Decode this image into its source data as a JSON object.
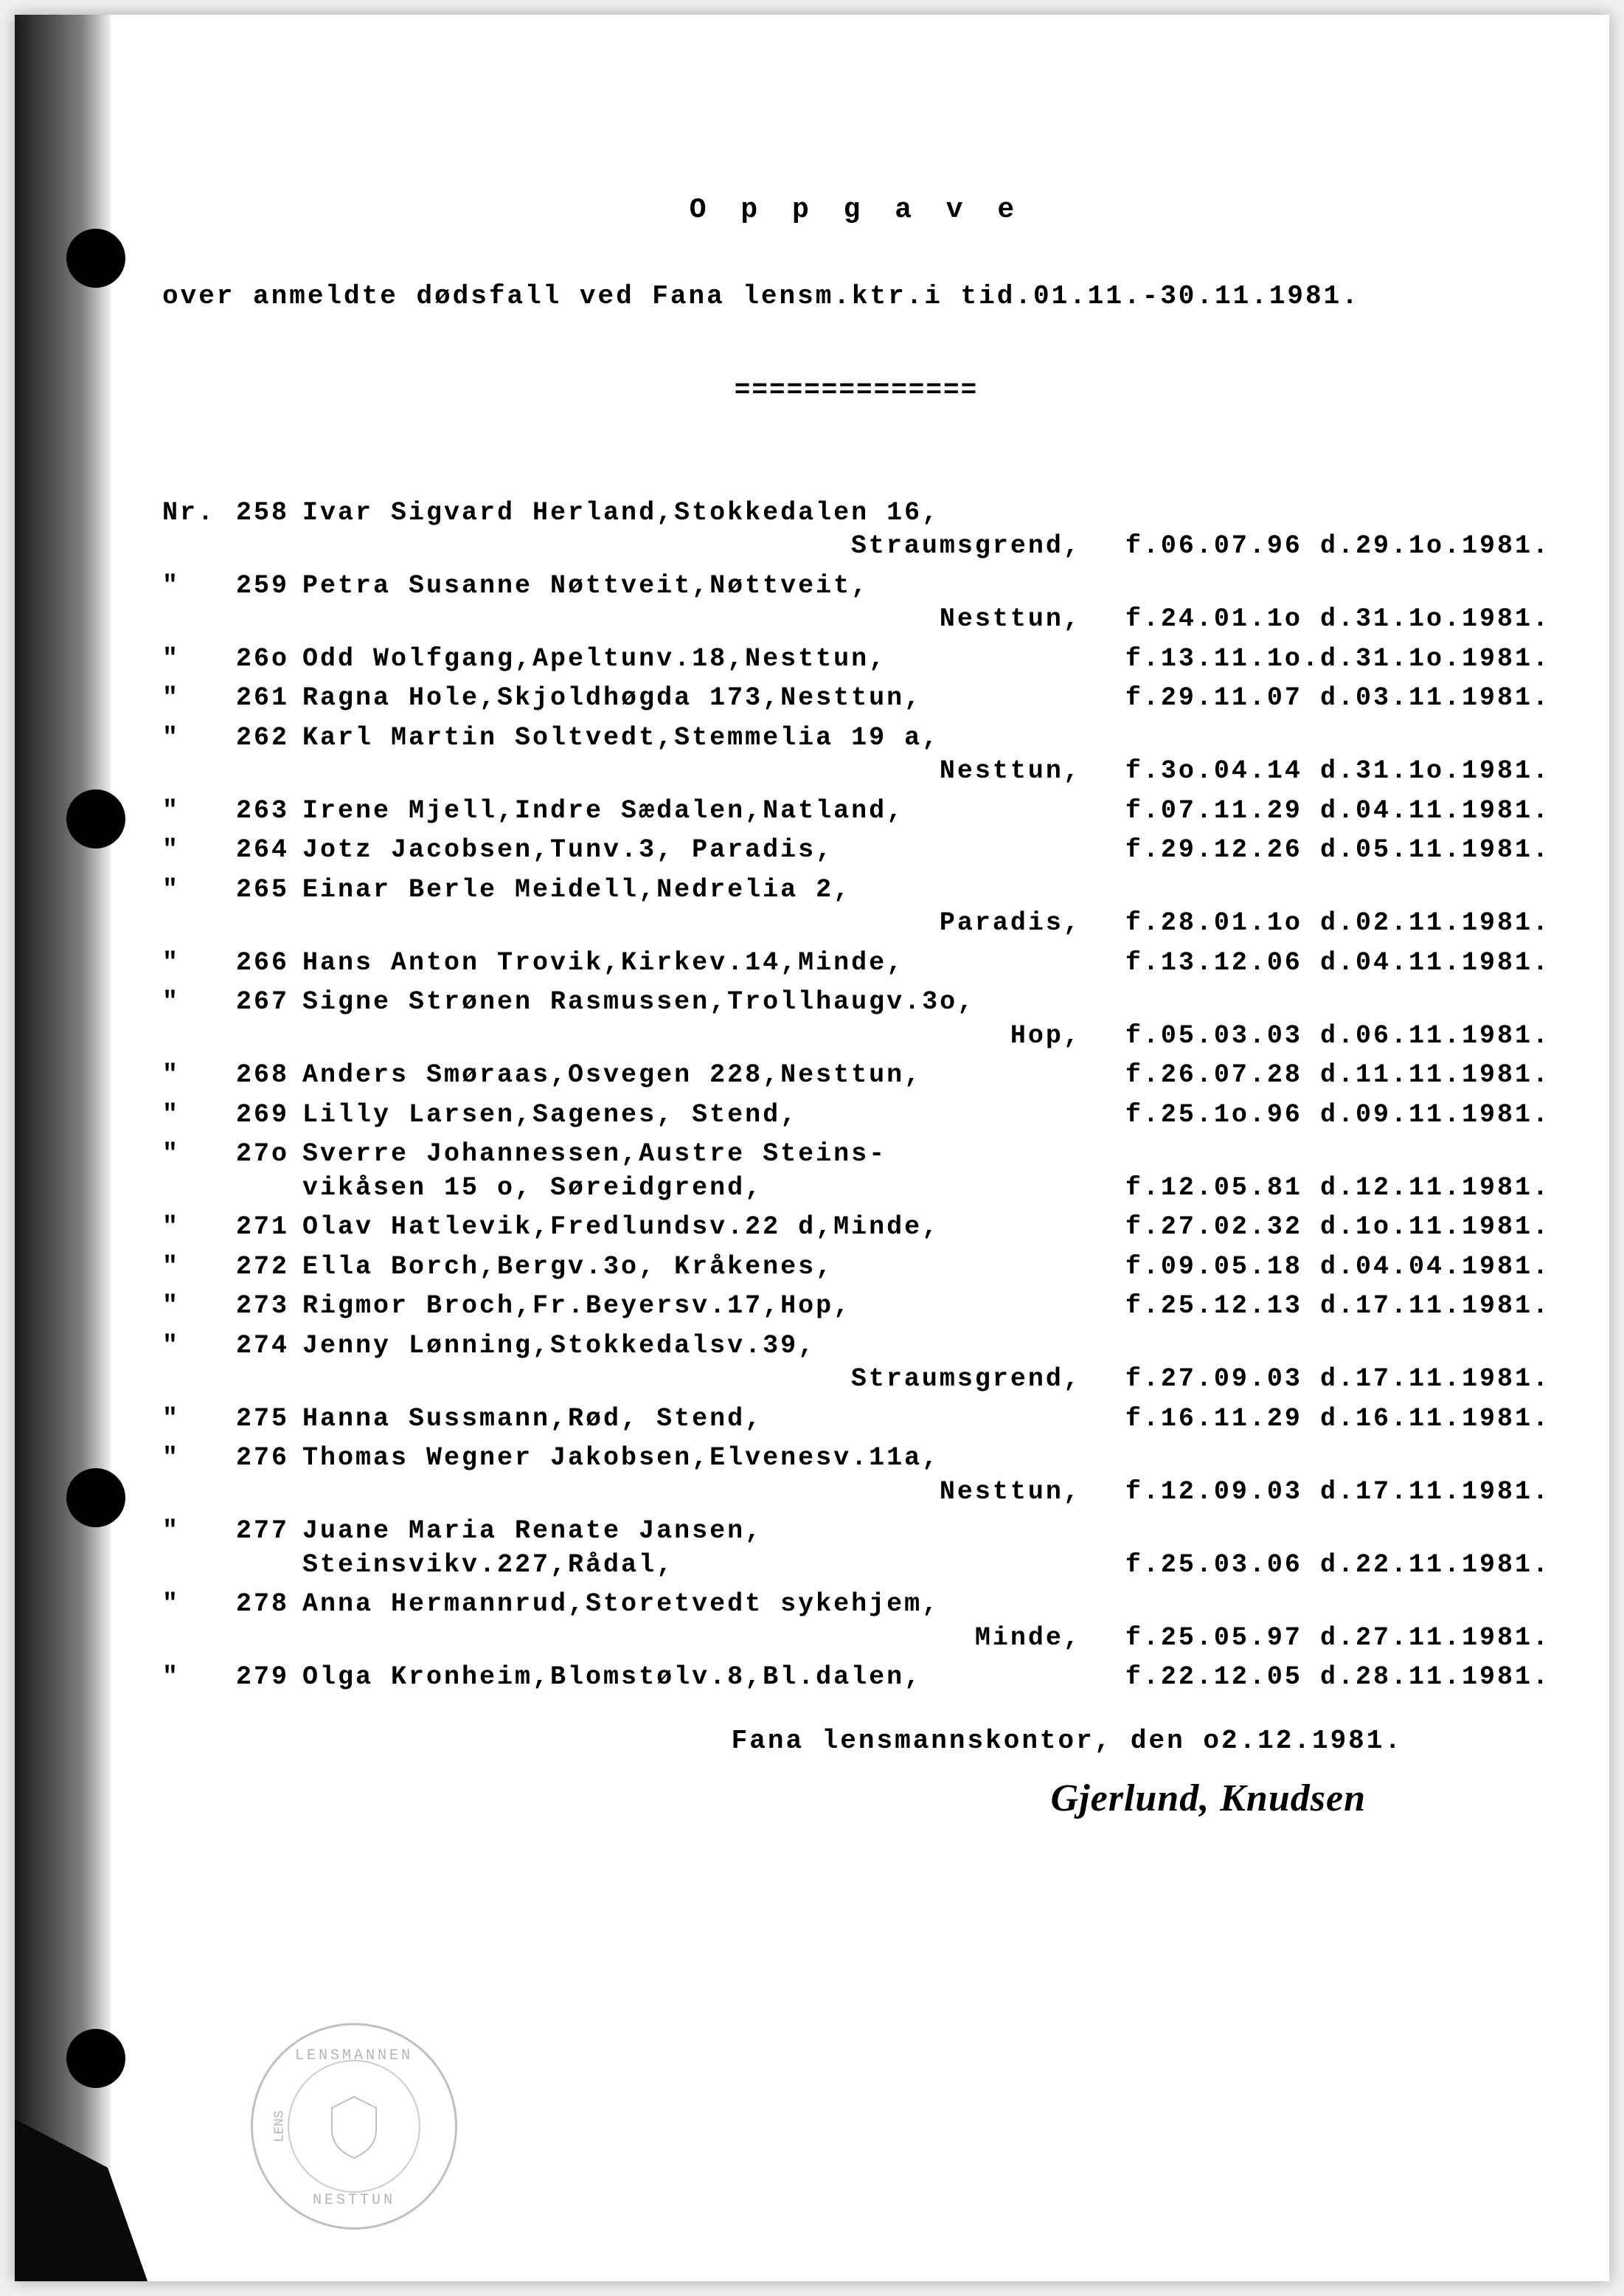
{
  "title": "O p p g a v e",
  "subtitle": "over anmeldte dødsfall ved Fana lensm.ktr.i tid.01.11.-30.11.1981.",
  "divider": "==============",
  "nr_label": "Nr.",
  "ditto": "\"",
  "entries": [
    {
      "num": "258",
      "line1": "Ivar Sigvard Herland,Stokkedalen 16,",
      "line2_place": "Straumsgrend,",
      "dates": "f.06.07.96 d.29.1o.1981."
    },
    {
      "num": "259",
      "line1": "Petra Susanne Nøttveit,Nøttveit,",
      "line2_place": "Nesttun,",
      "dates": "f.24.01.1o d.31.1o.1981."
    },
    {
      "num": "26o",
      "line1": "Odd Wolfgang,Apeltunv.18,Nesttun,",
      "dates": "f.13.11.1o.d.31.1o.1981."
    },
    {
      "num": "261",
      "line1": "Ragna Hole,Skjoldhøgda 173,Nesttun,",
      "dates": "f.29.11.07 d.03.11.1981."
    },
    {
      "num": "262",
      "line1": "Karl Martin Soltvedt,Stemmelia 19 a,",
      "line2_place": "Nesttun,",
      "dates": "f.3o.04.14 d.31.1o.1981."
    },
    {
      "num": "263",
      "line1": "Irene Mjell,Indre Sædalen,Natland,",
      "dates": "f.07.11.29 d.04.11.1981."
    },
    {
      "num": "264",
      "line1": "Jotz Jacobsen,Tunv.3, Paradis,",
      "dates": "f.29.12.26 d.05.11.1981."
    },
    {
      "num": "265",
      "line1": "Einar Berle Meidell,Nedrelia 2,",
      "line2_place": "Paradis,",
      "dates": "f.28.01.1o d.02.11.1981."
    },
    {
      "num": "266",
      "line1": "Hans Anton Trovik,Kirkev.14,Minde,",
      "dates": "f.13.12.06 d.04.11.1981."
    },
    {
      "num": "267",
      "line1": "Signe Strønen Rasmussen,Trollhaugv.3o,",
      "line2_place": "Hop,",
      "dates": "f.05.03.03 d.06.11.1981."
    },
    {
      "num": "268",
      "line1": "Anders Smøraas,Osvegen 228,Nesttun,",
      "dates": "f.26.07.28 d.11.11.1981."
    },
    {
      "num": "269",
      "line1": "Lilly Larsen,Sagenes, Stend,",
      "dates": "f.25.1o.96 d.09.11.1981."
    },
    {
      "num": "27o",
      "line1": "Sverre Johannessen,Austre Steins-",
      "line2_full": "vikåsen 15 o, Søreidgrend,",
      "dates": "f.12.05.81 d.12.11.1981."
    },
    {
      "num": "271",
      "line1": "Olav Hatlevik,Fredlundsv.22 d,Minde,",
      "dates": "f.27.02.32 d.1o.11.1981."
    },
    {
      "num": "272",
      "line1": "Ella Borch,Bergv.3o, Kråkenes,",
      "dates": "f.09.05.18 d.04.04.1981."
    },
    {
      "num": "273",
      "line1": "Rigmor Broch,Fr.Beyersv.17,Hop,",
      "dates": "f.25.12.13 d.17.11.1981."
    },
    {
      "num": "274",
      "line1": "Jenny Lønning,Stokkedalsv.39,",
      "line2_place": "Straumsgrend,",
      "dates": "f.27.09.03 d.17.11.1981."
    },
    {
      "num": "275",
      "line1": "Hanna Sussmann,Rød, Stend,",
      "dates": "f.16.11.29 d.16.11.1981."
    },
    {
      "num": "276",
      "line1": "Thomas Wegner Jakobsen,Elvenesv.11a,",
      "line2_place": "Nesttun,",
      "dates": "f.12.09.03 d.17.11.1981."
    },
    {
      "num": "277",
      "line1": "Juane Maria Renate Jansen,",
      "line2_full": "Steinsvikv.227,Rådal,",
      "dates": "f.25.03.06 d.22.11.1981."
    },
    {
      "num": "278",
      "line1": "Anna Hermannrud,Storetvedt sykehjem,",
      "line2_place": "Minde,",
      "dates": "f.25.05.97 d.27.11.1981."
    },
    {
      "num": "279",
      "line1": "Olga Kronheim,Blomstølv.8,Bl.dalen,",
      "dates": "f.22.12.05 d.28.11.1981."
    }
  ],
  "footer": "Fana lensmannskontor, den o2.12.1981.",
  "signature": "Gjerlund, Knudsen",
  "stamp": {
    "top": "LENSMANNEN",
    "bottom": "NESTTUN",
    "side": "LENS"
  }
}
